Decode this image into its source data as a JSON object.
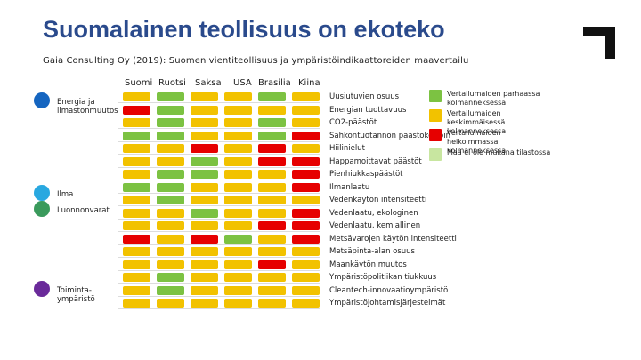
{
  "title": "Suomalainen teollisuus on ekoteko",
  "subtitle": "Gaia Consulting Oy (2019): Suomen vientiteollisuus ja ympäristöindikaattoreiden maavertailu",
  "columns": [
    "Suomi",
    "Ruotsi",
    "Saksa",
    "USA",
    "Brasilia",
    "Kiina"
  ],
  "categories": [
    {
      "label": "Energia ja ilmastonmuutos",
      "color": "#1565c0"
    },
    {
      "label": "Ilma",
      "color": "#29a8e0"
    },
    {
      "label": "Luonnonvarat",
      "color": "#3a9a5c"
    },
    {
      "label": "Toiminta-ympäristö",
      "color": "#6a2a9a"
    }
  ],
  "status_colors": {
    "g": "#7cc242",
    "y": "#f2c200",
    "r": "#e60000",
    "n": "#c8e6a0"
  },
  "indicators": [
    {
      "label": "Uusiutuvien osuus",
      "cells": [
        "y",
        "g",
        "y",
        "y",
        "g",
        "y"
      ]
    },
    {
      "label": "Energian tuottavuus",
      "cells": [
        "r",
        "g",
        "y",
        "y",
        "y",
        "y"
      ]
    },
    {
      "label": "CO2-päästöt",
      "cells": [
        "y",
        "g",
        "y",
        "y",
        "g",
        "y"
      ]
    },
    {
      "label": "Sähköntuotannon päästökerroin",
      "cells": [
        "g",
        "g",
        "y",
        "y",
        "g",
        "r"
      ]
    },
    {
      "label": "Hiilinielut",
      "cells": [
        "y",
        "y",
        "r",
        "y",
        "r",
        "y"
      ]
    },
    {
      "label": "Happamoittavat päästöt",
      "cells": [
        "y",
        "y",
        "g",
        "y",
        "r",
        "r"
      ]
    },
    {
      "label": "Pienhiukkaspäästöt",
      "cells": [
        "y",
        "g",
        "g",
        "y",
        "y",
        "r"
      ]
    },
    {
      "label": "Ilmanlaatu",
      "cells": [
        "g",
        "g",
        "y",
        "y",
        "y",
        "r"
      ]
    },
    {
      "label": "Vedenkäytön intensiteetti",
      "cells": [
        "y",
        "g",
        "y",
        "y",
        "y",
        "y"
      ]
    },
    {
      "label": "Vedenlaatu, ekologinen",
      "cells": [
        "y",
        "y",
        "g",
        "y",
        "y",
        "r"
      ]
    },
    {
      "label": "Vedenlaatu, kemiallinen",
      "cells": [
        "y",
        "y",
        "y",
        "y",
        "r",
        "r"
      ]
    },
    {
      "label": "Metsävarojen käytön intensiteetti",
      "cells": [
        "r",
        "y",
        "r",
        "g",
        "y",
        "r"
      ]
    },
    {
      "label": "Metsäpinta-alan osuus",
      "cells": [
        "y",
        "y",
        "y",
        "y",
        "y",
        "y"
      ]
    },
    {
      "label": "Maankäytön muutos",
      "cells": [
        "y",
        "y",
        "y",
        "y",
        "r",
        "y"
      ]
    },
    {
      "label": "Ympäristöpolitiikan tiukkuus",
      "cells": [
        "y",
        "g",
        "y",
        "y",
        "y",
        "y"
      ]
    },
    {
      "label": "Cleantech-innovaatioympäristö",
      "cells": [
        "y",
        "g",
        "y",
        "y",
        "y",
        "y"
      ]
    },
    {
      "label": "Ympäristöjohtamisjärjestelmät",
      "cells": [
        "y",
        "y",
        "y",
        "y",
        "y",
        "y"
      ]
    }
  ],
  "legend": [
    {
      "key": "g",
      "label": "Vertailumaiden parhaassa kolmanneksessa"
    },
    {
      "key": "y",
      "label": "Vertailumaiden keskimmäisessä kolmanneksessa"
    },
    {
      "key": "r",
      "label": "Vertailumaiden heikoimmassa kolmanneksessa"
    },
    {
      "key": "n",
      "label": "Maa ei ole mukana tilastossa"
    }
  ]
}
